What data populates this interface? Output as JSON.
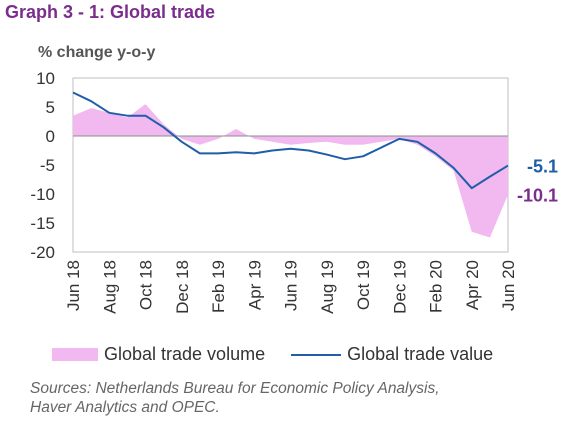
{
  "title": "Graph 3 - 1: Global trade",
  "unit_label": "% change y-o-y",
  "source_line1": "Sources: Netherlands Bureau for Economic Policy Analysis,",
  "source_line2": "Haver Analytics and OPEC.",
  "colors": {
    "volume_fill": "#f2b8f0",
    "value_line": "#1f5ea8",
    "value_label": "#1f5ea8",
    "volume_label": "#7b2d8e"
  },
  "chart_data": {
    "type": "area",
    "x": [
      "Jun 18",
      "Jul 18",
      "Aug 18",
      "Sep 18",
      "Oct 18",
      "Nov 18",
      "Dec 18",
      "Jan 19",
      "Feb 19",
      "Mar 19",
      "Apr 19",
      "May 19",
      "Jun 19",
      "Jul 19",
      "Aug 19",
      "Sep 19",
      "Oct 19",
      "Nov 19",
      "Dec 19",
      "Jan 20",
      "Feb 20",
      "Mar 20",
      "Apr 20",
      "May 20",
      "Jun 20"
    ],
    "x_tick_labels": [
      "Jun 18",
      "Aug 18",
      "Oct 18",
      "Dec 18",
      "Feb 19",
      "Apr 19",
      "Jun 19",
      "Aug 19",
      "Oct 19",
      "Dec 19",
      "Feb 20",
      "Apr 20",
      "Jun 20"
    ],
    "ylim": [
      -20,
      10
    ],
    "y_ticks": [
      10,
      5,
      0,
      -5,
      -10,
      -15,
      -20
    ],
    "series": [
      {
        "name": "Global trade volume",
        "style": "area",
        "values": [
          3.5,
          4.8,
          4.0,
          3.2,
          5.5,
          2.0,
          -0.5,
          -1.5,
          -0.5,
          1.2,
          -0.5,
          -1.0,
          -1.5,
          -1.2,
          -1.0,
          -1.5,
          -1.5,
          -1.0,
          -0.5,
          -1.5,
          -3.5,
          -6.0,
          -16.5,
          -17.5,
          -10.1
        ],
        "end_label": "-10.1"
      },
      {
        "name": "Global trade value",
        "style": "line",
        "values": [
          7.5,
          6.0,
          4.0,
          3.5,
          3.5,
          1.5,
          -1.0,
          -3.0,
          -3.0,
          -2.8,
          -3.0,
          -2.5,
          -2.2,
          -2.5,
          -3.2,
          -4.0,
          -3.5,
          -2.0,
          -0.5,
          -1.0,
          -3.0,
          -5.5,
          -9.0,
          -7.0,
          -5.1
        ],
        "end_label": "-5.1"
      }
    ]
  }
}
